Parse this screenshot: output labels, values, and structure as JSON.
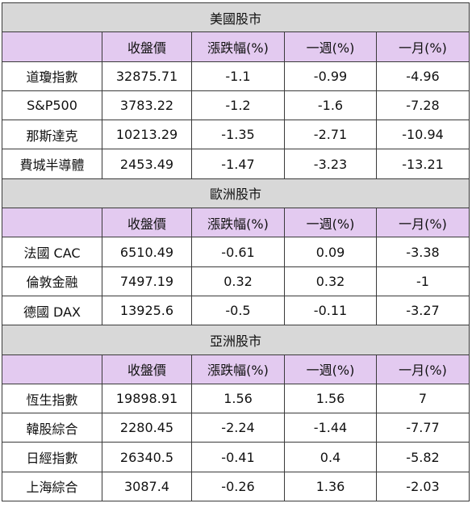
{
  "columns": [
    "",
    "收盤價",
    "漲跌幅(%)",
    "一週(%)",
    "一月(%)"
  ],
  "sections": [
    {
      "title": "美國股市",
      "rows": [
        [
          "道瓊指數",
          "32875.71",
          "-1.1",
          "-0.99",
          "-4.96"
        ],
        [
          "S&P500",
          "3783.22",
          "-1.2",
          "-1.6",
          "-7.28"
        ],
        [
          "那斯達克",
          "10213.29",
          "-1.35",
          "-2.71",
          "-10.94"
        ],
        [
          "費城半導體",
          "2453.49",
          "-1.47",
          "-3.23",
          "-13.21"
        ]
      ]
    },
    {
      "title": "歐洲股市",
      "rows": [
        [
          "法國 CAC",
          "6510.49",
          "-0.61",
          "0.09",
          "-3.38"
        ],
        [
          "倫敦金融",
          "7497.19",
          "0.32",
          "0.32",
          "-1"
        ],
        [
          "德國 DAX",
          "13925.6",
          "-0.5",
          "-0.11",
          "-3.27"
        ]
      ]
    },
    {
      "title": "亞洲股市",
      "rows": [
        [
          "恆生指數",
          "19898.91",
          "1.56",
          "1.56",
          "7"
        ],
        [
          "韓股綜合",
          "2280.45",
          "-2.24",
          "-1.44",
          "-7.77"
        ],
        [
          "日經指數",
          "26340.5",
          "-0.41",
          "0.4",
          "-5.82"
        ],
        [
          "上海綜合",
          "3087.4",
          "-0.26",
          "1.36",
          "-2.03"
        ]
      ]
    }
  ],
  "colors": {
    "section_header_bg": "#d8d8d8",
    "column_header_bg": "#e3caf0",
    "border": "#3a3a3a"
  }
}
